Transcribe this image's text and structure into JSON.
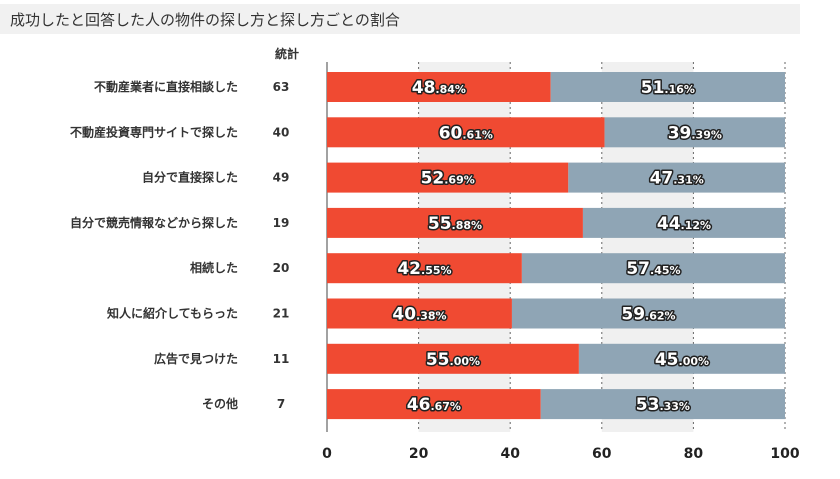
{
  "chart_data": {
    "type": "bar",
    "orientation": "horizontal",
    "stacked": true,
    "title": "成功したと回答した人の物件の探し方と探し方ごとの割合",
    "count_header": "統計",
    "categories": [
      "不動産業者に直接相談した",
      "不動産投資専門サイトで探した",
      "自分で直接探した",
      "自分で競売情報などから探した",
      "相続した",
      "知人に紹介してもらった",
      "広告で見つけた",
      "その他"
    ],
    "counts": [
      "63",
      "40",
      "49",
      "19",
      "20",
      "21",
      "11",
      "7"
    ],
    "series": [
      {
        "values": [
          48.84,
          60.61,
          52.69,
          55.88,
          42.55,
          40.38,
          55.0,
          46.67
        ],
        "labels": [
          "48.84%",
          "60.61%",
          "52.69%",
          "55.88%",
          "42.55%",
          "40.38%",
          "55.00%",
          "46.67%"
        ]
      },
      {
        "values": [
          51.16,
          39.39,
          47.31,
          44.12,
          57.45,
          59.62,
          45.0,
          53.33
        ],
        "labels": [
          "51.16%",
          "39.39%",
          "47.31%",
          "44.12%",
          "57.45%",
          "59.62%",
          "45.00%",
          "53.33%"
        ]
      }
    ],
    "xlim": [
      0,
      100
    ],
    "xticks": [
      "0",
      "20",
      "40",
      "60",
      "80",
      "100"
    ],
    "grid": true,
    "colors": {
      "series1": "#f04a32",
      "series2": "#8fa5b5",
      "band": "#f0f0f0",
      "grid": "#666666"
    }
  }
}
